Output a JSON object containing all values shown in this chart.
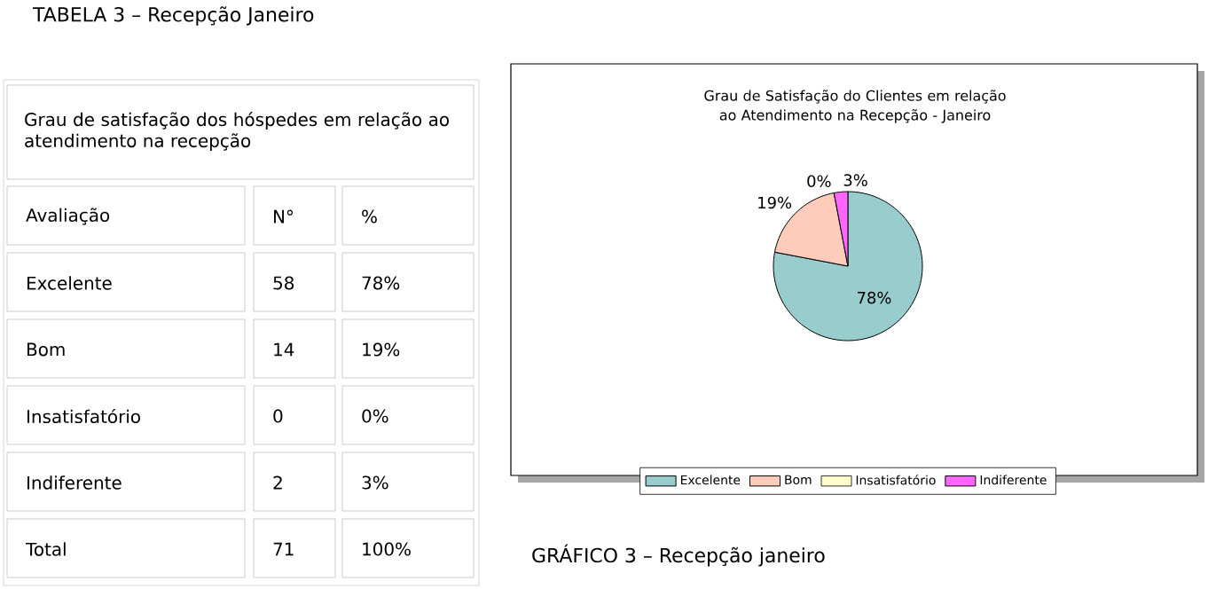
{
  "chart_data": [
    {
      "type": "other",
      "title": "TABELA 3 – Recepção Janeiro",
      "subtitle": "Grau de satisfação dos hóspedes em relação ao atendimento na recepção",
      "annotations": [
        "Avaliação",
        "N°",
        "%",
        "Excelente",
        "58",
        "78%",
        "Bom",
        "14",
        "19%",
        "Insatisfatório",
        "0",
        "0%",
        "Indiferente",
        "2",
        "3%",
        "Total",
        "71",
        "100%"
      ]
    },
    {
      "type": "pie",
      "title": "Grau de Satisfação do Clientes em relação ao Atendimento na Recepção - Janeiro",
      "categories": [
        "Excelente",
        "Bom",
        "Insatisfatório",
        "Indiferente"
      ],
      "values": [
        78,
        19,
        0,
        3
      ],
      "colors": [
        "#99cccc",
        "#ffccbb",
        "#ffffcc",
        "#ff66ff"
      ],
      "value_labels": [
        "78%",
        "19%",
        "0%",
        "3%"
      ],
      "legend": "bottom",
      "annotations": [
        "GRÁFICO 3 – Recepção janeiro"
      ]
    }
  ]
}
